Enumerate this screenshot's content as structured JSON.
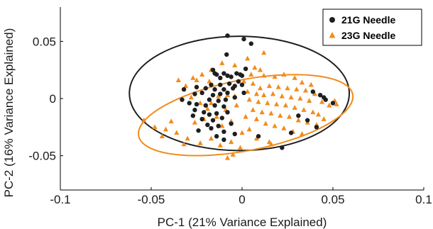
{
  "chart_data": {
    "type": "scatter",
    "xlabel": "PC-1 (21% Variance Explained)",
    "ylabel": "PC-2 (16% Variance Explained)",
    "xlim": [
      -0.1,
      0.1
    ],
    "ylim": [
      -0.08,
      0.08
    ],
    "x_ticks": [
      -0.1,
      -0.05,
      0,
      0.05,
      0.1
    ],
    "x_tick_labels": [
      "-0.1",
      "-0.05",
      "0",
      "0.05",
      "0.1"
    ],
    "y_ticks": [
      -0.05,
      0,
      0.05
    ],
    "y_tick_labels": [
      "-0.05",
      "0",
      "0.05"
    ],
    "grid": false,
    "legend_position": "top-right",
    "series": [
      {
        "name": "21G Needle",
        "marker": "circle",
        "color": "#1f1f1f",
        "points": [
          [
            -0.008,
            0.055
          ],
          [
            -0.0085,
            0.0385
          ],
          [
            0.001,
            0.052
          ],
          [
            -0.016,
            0.025
          ],
          [
            -0.015,
            0.022
          ],
          [
            -0.014,
            0.021
          ],
          [
            -0.012,
            0.018
          ],
          [
            -0.01,
            0.022
          ],
          [
            -0.008,
            0.02
          ],
          [
            -0.006,
            0.019
          ],
          [
            -0.003,
            0.022
          ],
          [
            -0.001,
            0.021
          ],
          [
            0.0,
            0.02
          ],
          [
            -0.017,
            0.012
          ],
          [
            -0.012,
            0.012
          ],
          [
            -0.007,
            0.013
          ],
          [
            -0.004,
            0.011
          ],
          [
            -0.002,
            0.015
          ],
          [
            -0.025,
            0.01
          ],
          [
            -0.02,
            0.009
          ],
          [
            -0.015,
            0.008
          ],
          [
            -0.01,
            0.008
          ],
          [
            -0.005,
            0.009
          ],
          [
            0.0,
            0.012
          ],
          [
            -0.026,
            0.004
          ],
          [
            -0.022,
            0.005
          ],
          [
            -0.016,
            0.003
          ],
          [
            -0.012,
            0.004
          ],
          [
            -0.008,
            0.005
          ],
          [
            -0.018,
            -0.001
          ],
          [
            -0.013,
            -0.002
          ],
          [
            -0.009,
            -0.001
          ],
          [
            -0.004,
            0.001
          ],
          [
            -0.029,
            -0.004
          ],
          [
            -0.025,
            -0.005
          ],
          [
            -0.02,
            -0.006
          ],
          [
            -0.015,
            -0.006
          ],
          [
            -0.01,
            -0.007
          ],
          [
            -0.026,
            -0.01
          ],
          [
            -0.021,
            -0.012
          ],
          [
            -0.018,
            -0.014
          ],
          [
            -0.014,
            -0.013
          ],
          [
            -0.008,
            -0.012
          ],
          [
            -0.022,
            -0.018
          ],
          [
            -0.016,
            -0.019
          ],
          [
            -0.011,
            -0.017
          ],
          [
            -0.019,
            -0.023
          ],
          [
            -0.013,
            -0.024
          ],
          [
            -0.006,
            -0.022
          ],
          [
            -0.017,
            -0.026
          ],
          [
            -0.01,
            -0.029
          ],
          [
            -0.014,
            -0.033
          ],
          [
            -0.01,
            -0.036
          ],
          [
            -0.004,
            -0.031
          ],
          [
            -0.027,
            -0.015
          ],
          [
            -0.024,
            -0.028
          ],
          [
            -0.032,
            0.008
          ],
          [
            -0.033,
            -0.001
          ],
          [
            0.002,
            0.026
          ],
          [
            0.005,
            0.048
          ],
          [
            0.009,
            -0.033
          ],
          [
            0.022,
            -0.043
          ],
          [
            0.027,
            -0.03
          ],
          [
            0.031,
            -0.015
          ],
          [
            0.036,
            -0.019
          ],
          [
            0.039,
            0.006
          ],
          [
            0.043,
            0.003
          ],
          [
            0.045,
            0.001
          ],
          [
            0.046,
            -0.001
          ],
          [
            0.05,
            -0.004
          ],
          [
            0.041,
            -0.025
          ],
          [
            0.001,
            0.005
          ]
        ]
      },
      {
        "name": "23G Needle",
        "marker": "triangle",
        "color": "#f28c1c",
        "points": [
          [
            0.012,
            0.04
          ],
          [
            0.007,
            0.027
          ],
          [
            0.01,
            0.025
          ],
          [
            0.005,
            0.021
          ],
          [
            0.012,
            0.02
          ],
          [
            0.018,
            0.019
          ],
          [
            0.023,
            0.021
          ],
          [
            0.029,
            0.018
          ],
          [
            0.033,
            0.014
          ],
          [
            0.038,
            0.012
          ],
          [
            0.001,
            0.015
          ],
          [
            0.006,
            0.013
          ],
          [
            0.01,
            0.009
          ],
          [
            0.015,
            0.011
          ],
          [
            0.02,
            0.01
          ],
          [
            0.025,
            0.009
          ],
          [
            0.03,
            0.008
          ],
          [
            0.035,
            0.007
          ],
          [
            0.04,
            0.004
          ],
          [
            0.044,
            -0.003
          ],
          [
            0.048,
            -0.006
          ],
          [
            0.051,
            -0.002
          ],
          [
            0.003,
            0.006
          ],
          [
            0.008,
            0.004
          ],
          [
            0.012,
            0.003
          ],
          [
            0.017,
            0.004
          ],
          [
            0.022,
            0.002
          ],
          [
            0.027,
            0.001
          ],
          [
            0.032,
            0.0
          ],
          [
            0.037,
            -0.002
          ],
          [
            0.004,
            -0.001
          ],
          [
            0.009,
            -0.003
          ],
          [
            0.014,
            -0.004
          ],
          [
            0.019,
            -0.005
          ],
          [
            0.024,
            -0.006
          ],
          [
            0.029,
            -0.008
          ],
          [
            0.034,
            -0.01
          ],
          [
            0.039,
            -0.012
          ],
          [
            0.042,
            -0.014
          ],
          [
            0.006,
            -0.01
          ],
          [
            0.011,
            -0.012
          ],
          [
            0.016,
            -0.013
          ],
          [
            0.021,
            -0.015
          ],
          [
            0.026,
            -0.016
          ],
          [
            0.031,
            -0.019
          ],
          [
            0.036,
            -0.021
          ],
          [
            0.041,
            -0.023
          ],
          [
            0.002,
            -0.016
          ],
          [
            0.008,
            -0.018
          ],
          [
            0.013,
            -0.022
          ],
          [
            0.018,
            -0.024
          ],
          [
            0.023,
            -0.026
          ],
          [
            0.028,
            -0.029
          ],
          [
            0.033,
            -0.031
          ],
          [
            0.008,
            -0.035
          ],
          [
            0.015,
            -0.038
          ],
          [
            -0.006,
            -0.02
          ],
          [
            -0.011,
            -0.024
          ],
          [
            -0.014,
            -0.016
          ],
          [
            -0.019,
            -0.009
          ],
          [
            -0.023,
            -0.004
          ],
          [
            -0.028,
            0.001
          ],
          [
            -0.031,
            0.011
          ],
          [
            -0.035,
            0.016
          ],
          [
            -0.025,
            0.016
          ],
          [
            -0.018,
            0.015
          ],
          [
            -0.013,
            0.002
          ],
          [
            -0.009,
            -0.01
          ],
          [
            -0.003,
            -0.006
          ],
          [
            -0.004,
            0.002
          ],
          [
            -0.039,
            -0.02
          ],
          [
            -0.044,
            -0.033
          ],
          [
            -0.054,
            -0.019
          ],
          [
            -0.048,
            -0.025
          ],
          [
            -0.042,
            -0.027
          ],
          [
            -0.036,
            -0.03
          ],
          [
            -0.03,
            -0.035
          ],
          [
            -0.032,
            -0.04
          ],
          [
            -0.023,
            -0.039
          ],
          [
            -0.017,
            -0.035
          ],
          [
            -0.012,
            -0.041
          ],
          [
            -0.006,
            -0.038
          ],
          [
            -0.001,
            -0.043
          ],
          [
            -0.008,
            -0.052
          ],
          [
            -0.005,
            -0.049
          ],
          [
            -0.026,
            -0.021
          ],
          [
            -0.021,
            -0.018
          ],
          [
            -0.017,
            -0.004
          ],
          [
            -0.008,
            0.003
          ],
          [
            -0.011,
            0.031
          ],
          [
            -0.004,
            0.029
          ],
          [
            0.003,
            0.035
          ],
          [
            -0.017,
            0.025
          ],
          [
            -0.022,
            0.021
          ],
          [
            -0.027,
            0.018
          ],
          [
            0.0,
            -0.03
          ],
          [
            0.004,
            -0.027
          ],
          [
            0.045,
            -0.018
          ],
          [
            0.052,
            -0.005
          ],
          [
            0.016,
            -0.04
          ]
        ]
      }
    ],
    "ellipses": [
      {
        "series": "21G Needle",
        "color": "#1f1f1f",
        "cx": -0.0015,
        "cy": 0.0045,
        "rx": 0.0605,
        "ry": 0.05,
        "rotation_deg": 0
      },
      {
        "series": "23G Needle",
        "color": "#f28c1c",
        "cx": 0.002,
        "cy": -0.0145,
        "rx": 0.06,
        "ry": 0.031,
        "rotation_deg": 11
      }
    ]
  }
}
